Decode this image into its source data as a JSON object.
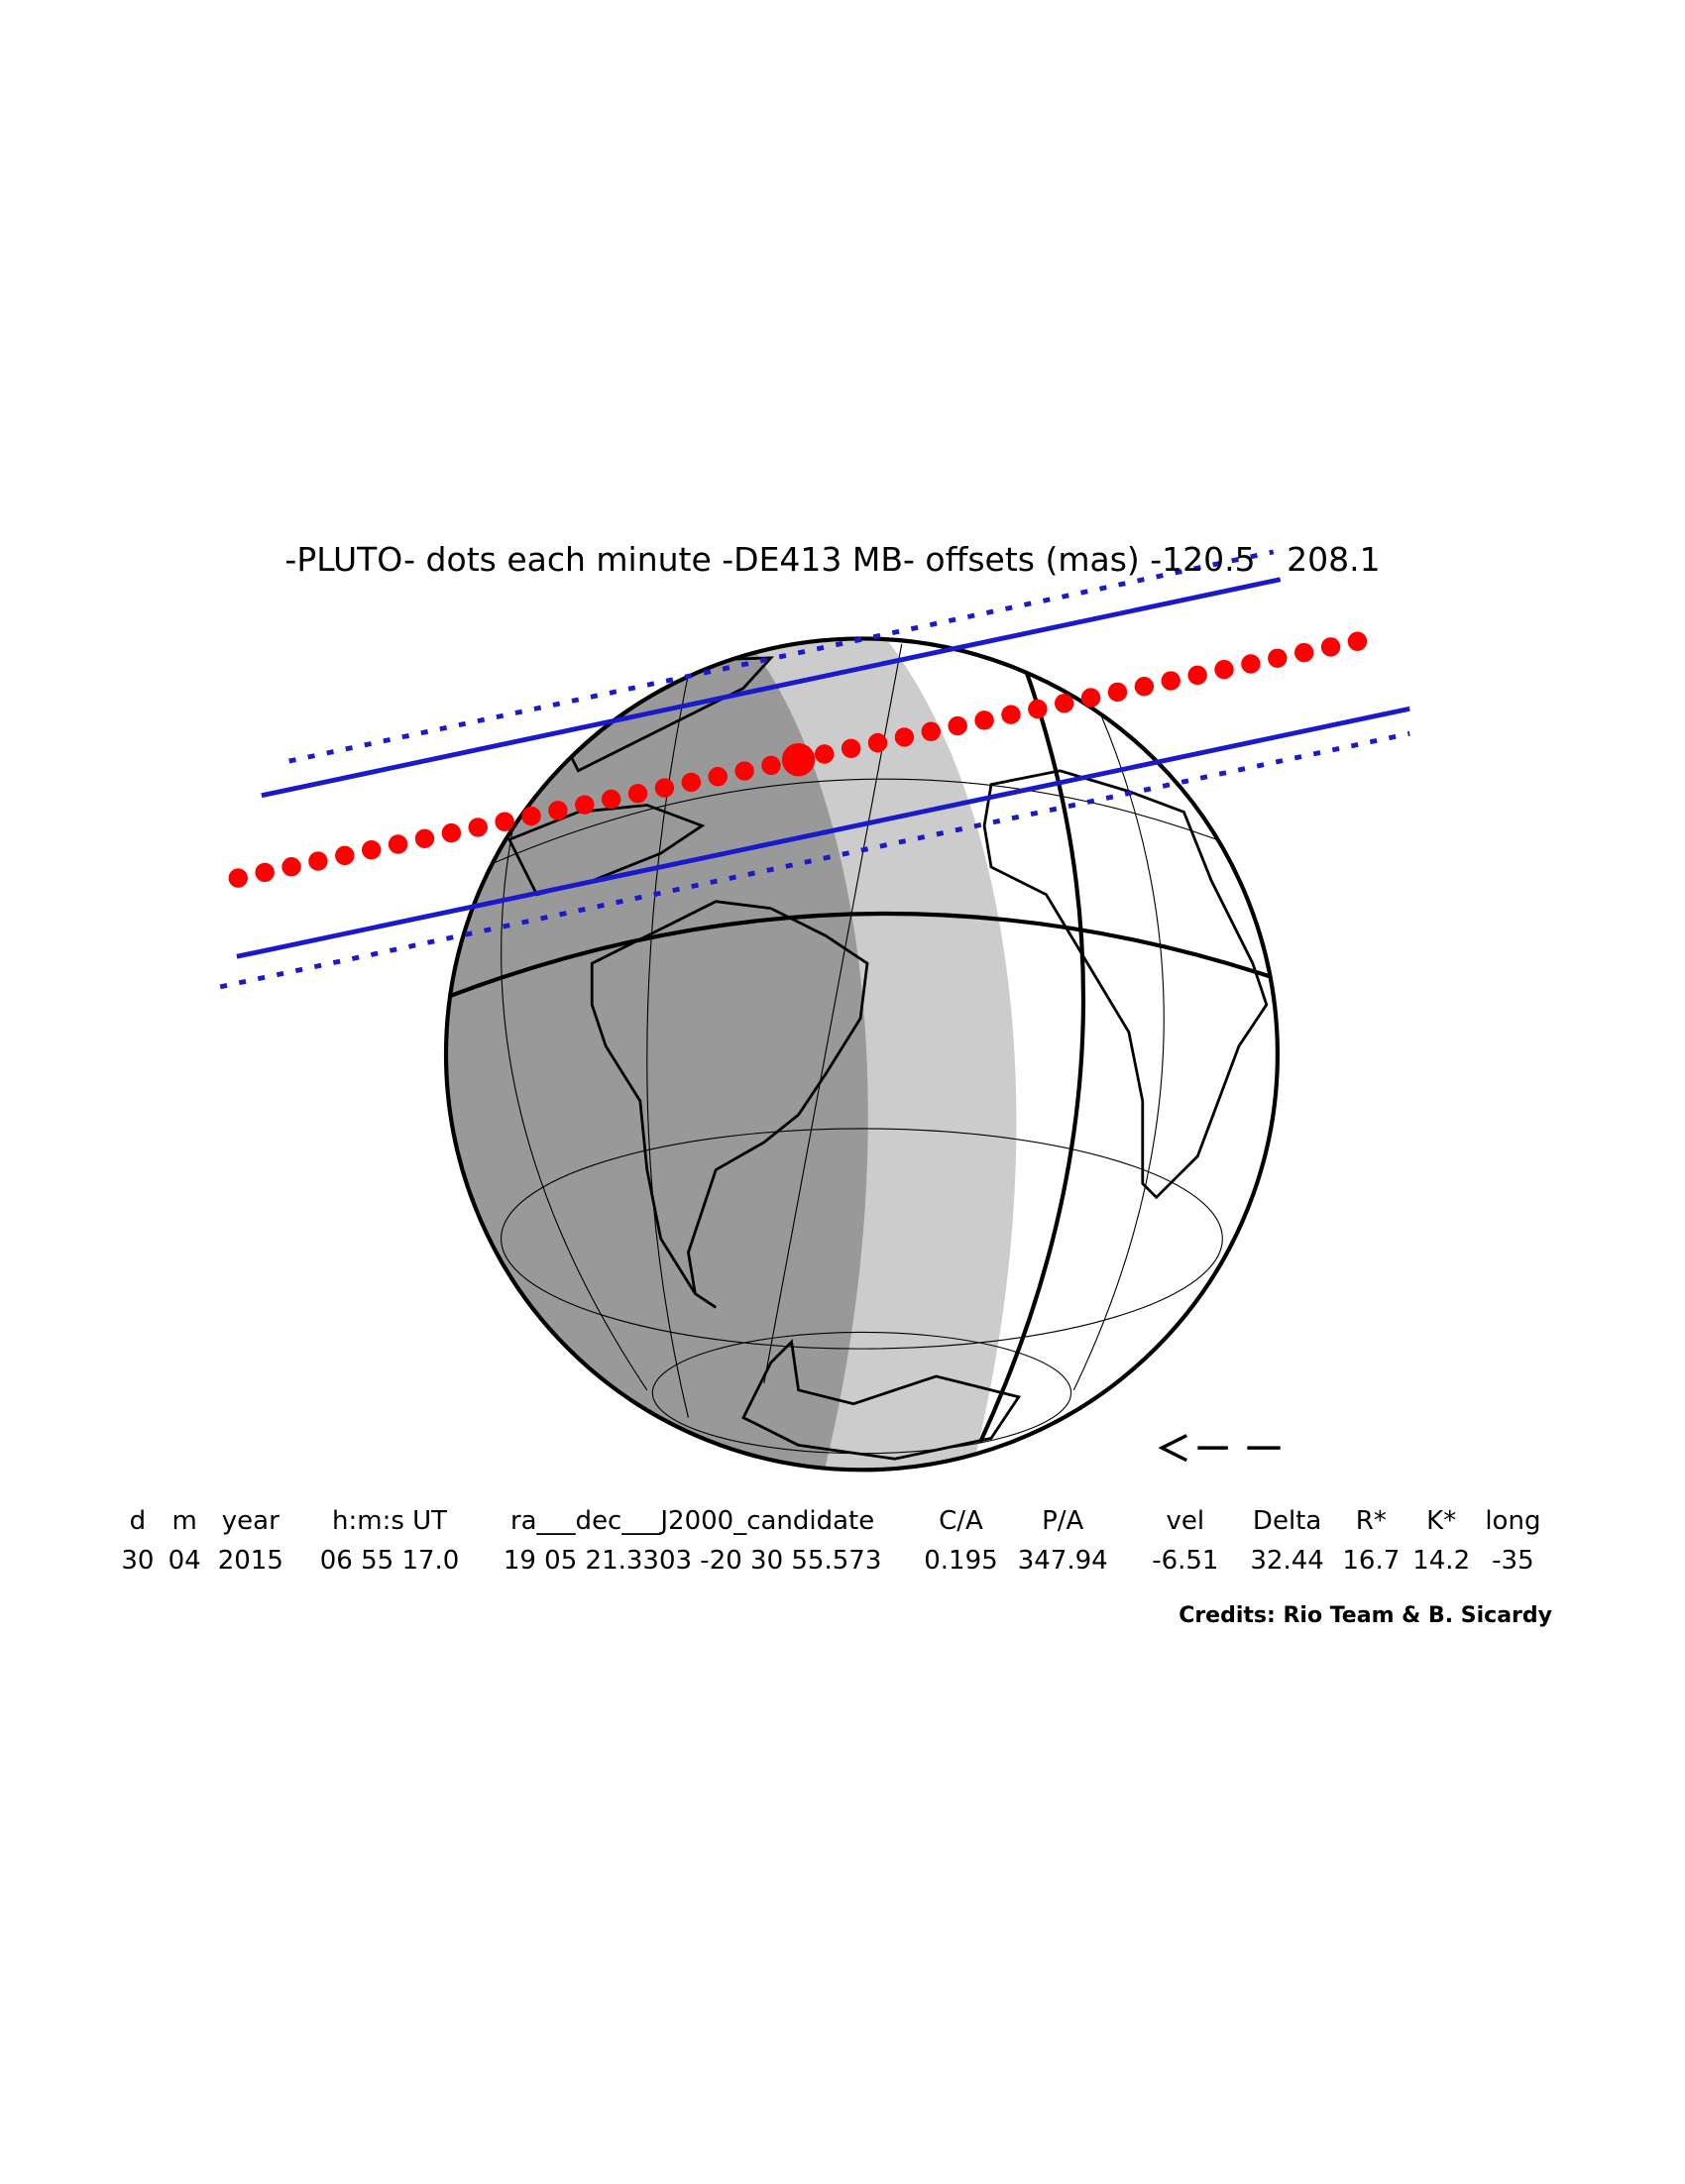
{
  "title": "-PLUTO- dots each minute -DE413 MB- offsets (mas) -120.5   208.1",
  "table": {
    "headers": [
      "d",
      "m",
      "year",
      "h:m:s UT",
      "ra___dec___J2000_candidate",
      "C/A",
      "P/A",
      "vel",
      "Delta",
      "R*",
      "K*",
      "long"
    ],
    "rows": [
      [
        "30",
        "04",
        "2015",
        "06 55 17.0",
        "19 05 21.3303 -20 30 55.573",
        "0.195",
        "347.94",
        "-6.51",
        "32.44",
        "16.7",
        "14.2",
        "-35"
      ]
    ]
  },
  "credits": "Credits: Rio Team & B. Sicardy"
}
